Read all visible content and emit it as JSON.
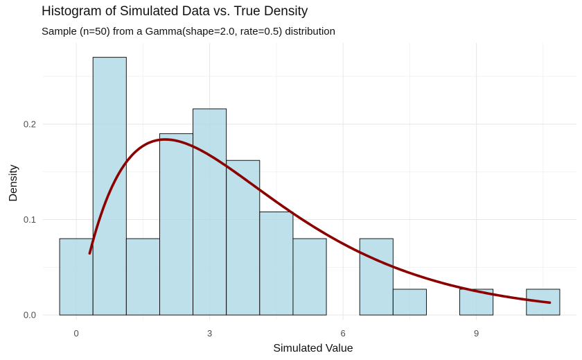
{
  "chart_data": {
    "type": "bar",
    "title": "Histogram of Simulated Data vs. True Density",
    "subtitle": "Sample (n=50) from a Gamma(shape=2.0, rate=0.5) distribution",
    "xlabel": "Simulated Value",
    "ylabel": "Density",
    "xlim": [
      -0.75,
      11.25
    ],
    "ylim": [
      -0.005,
      0.285
    ],
    "x_ticks": [
      0,
      3,
      6,
      9
    ],
    "y_ticks": [
      0.0,
      0.1,
      0.2
    ],
    "x_tick_labels": [
      "0",
      "3",
      "6",
      "9"
    ],
    "y_tick_labels": [
      "0.0",
      "0.1",
      "0.2"
    ],
    "grid": true,
    "bins": [
      {
        "x0": -0.375,
        "x1": 0.375,
        "density": 0.08
      },
      {
        "x0": 0.375,
        "x1": 1.125,
        "density": 0.27
      },
      {
        "x0": 1.125,
        "x1": 1.875,
        "density": 0.08
      },
      {
        "x0": 1.875,
        "x1": 2.625,
        "density": 0.19
      },
      {
        "x0": 2.625,
        "x1": 3.375,
        "density": 0.216
      },
      {
        "x0": 3.375,
        "x1": 4.125,
        "density": 0.162
      },
      {
        "x0": 4.125,
        "x1": 4.875,
        "density": 0.108
      },
      {
        "x0": 4.875,
        "x1": 5.625,
        "density": 0.08
      },
      {
        "x0": 5.625,
        "x1": 6.375,
        "density": 0.0
      },
      {
        "x0": 6.375,
        "x1": 7.125,
        "density": 0.08
      },
      {
        "x0": 7.125,
        "x1": 7.875,
        "density": 0.027
      },
      {
        "x0": 7.875,
        "x1": 8.625,
        "density": 0.0
      },
      {
        "x0": 8.625,
        "x1": 9.375,
        "density": 0.027
      },
      {
        "x0": 9.375,
        "x1": 10.125,
        "density": 0.0
      },
      {
        "x0": 10.125,
        "x1": 10.875,
        "density": 0.027
      }
    ],
    "density_curve": {
      "distribution": "Gamma(shape=2.0, rate=0.5)",
      "x_range": [
        0.3,
        10.65
      ],
      "color": "#8b0000"
    },
    "colors": {
      "bar_fill": "#add8e6",
      "bar_stroke": "#000000",
      "curve": "#8b0000",
      "grid_major": "#e6e6e6",
      "grid_minor": "#f2f2f2"
    }
  }
}
